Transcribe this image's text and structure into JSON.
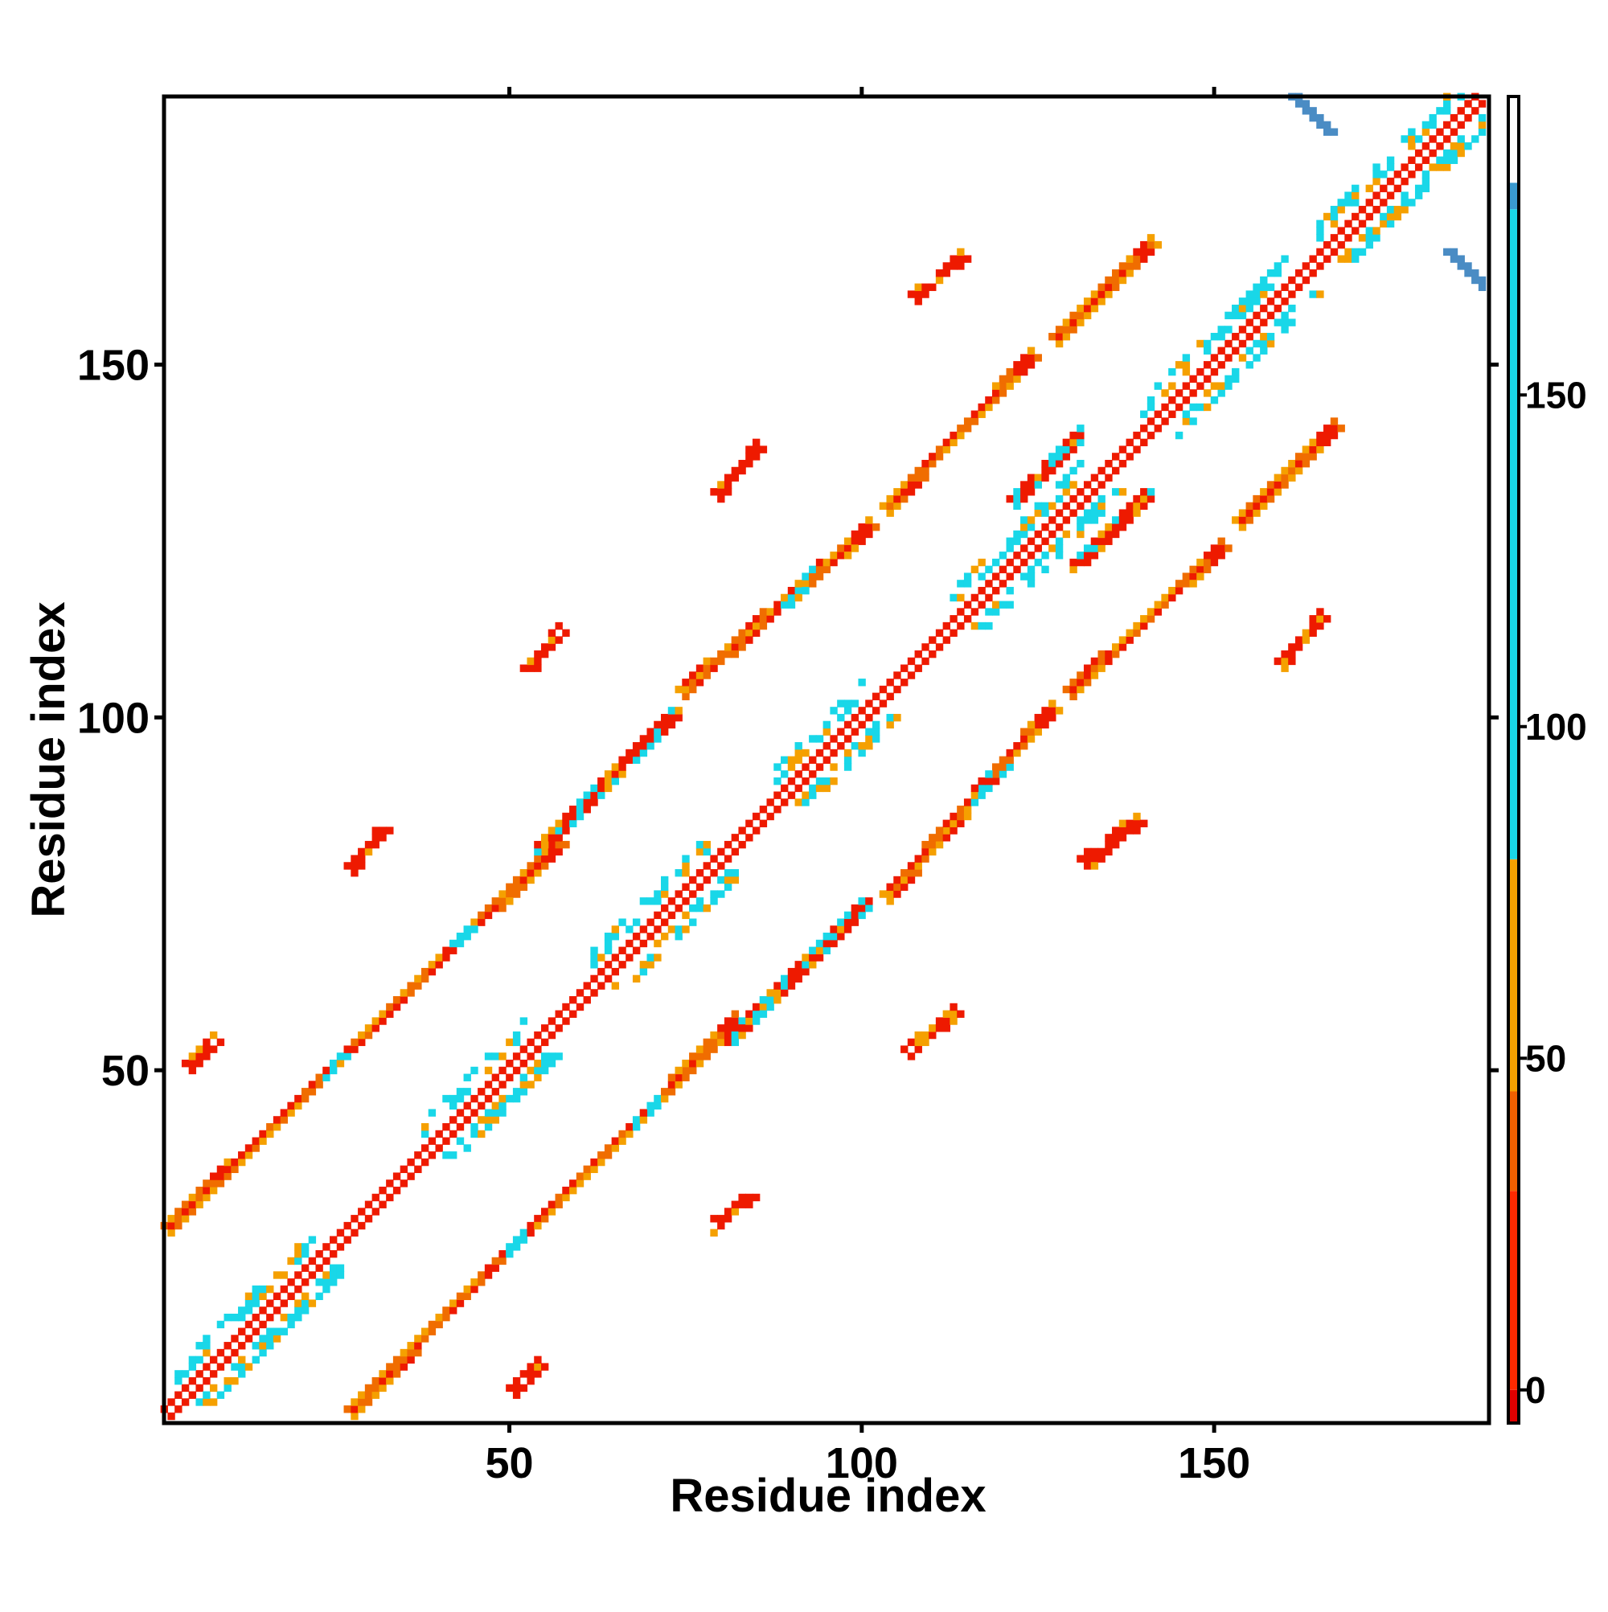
{
  "chart_data": {
    "type": "heatmap",
    "xlabel": "Residue index",
    "ylabel": "Residue index",
    "xlim": [
      1,
      188
    ],
    "ylim": [
      1,
      188
    ],
    "x_ticks": [
      50,
      100,
      150
    ],
    "y_ticks": [
      50,
      100,
      150
    ],
    "grid": false,
    "legend": "colorbar-right",
    "colorbar": {
      "range": [
        -5,
        195
      ],
      "ticks": [
        0,
        50,
        100,
        150
      ],
      "segments": [
        {
          "from": -5,
          "to": 0,
          "color": "#e00000"
        },
        {
          "from": 0,
          "to": 30,
          "color": "#ff2a00"
        },
        {
          "from": 30,
          "to": 45,
          "color": "#f06000"
        },
        {
          "from": 45,
          "to": 80,
          "color": "#f5a000"
        },
        {
          "from": 80,
          "to": 178,
          "color": "#19d7e8"
        },
        {
          "from": 178,
          "to": 182,
          "color": "#3a9ad0"
        },
        {
          "from": 182,
          "to": 195,
          "color": "#ffffff"
        }
      ]
    },
    "color_key": {
      "strong": "#ee1a00",
      "mid": "#f06d00",
      "weak": "#f5a000",
      "cyan": "#19d7e8",
      "blue": "#4a8cc4"
    },
    "bands": [
      {
        "x": [
          1,
          188
        ],
        "y": [
          1,
          188
        ],
        "width": 2.2,
        "pattern": "diag"
      },
      {
        "x": [
          3,
          56
        ],
        "y": [
          29,
          81
        ],
        "width": 2.5,
        "pattern": "strand",
        "gaps": [
          [
            22,
            26
          ],
          [
            40,
            44
          ]
        ]
      },
      {
        "x": [
          29,
          81
        ],
        "y": [
          3,
          56
        ],
        "width": 2.5,
        "pattern": "strand",
        "gaps": [
          [
            22,
            26
          ],
          [
            40,
            44
          ]
        ]
      },
      {
        "x": [
          76,
          100
        ],
        "y": [
          105,
          126
        ],
        "width": 2.8,
        "pattern": "strand",
        "gaps": [
          [
            14,
            17
          ]
        ]
      },
      {
        "x": [
          105,
          126
        ],
        "y": [
          76,
          100
        ],
        "width": 2.8,
        "pattern": "strand",
        "gaps": [
          [
            14,
            17
          ]
        ]
      },
      {
        "x": [
          105,
          123
        ],
        "y": [
          131,
          150
        ],
        "width": 2.6,
        "pattern": "strand",
        "gaps": []
      },
      {
        "x": [
          131,
          150
        ],
        "y": [
          105,
          123
        ],
        "width": 2.6,
        "pattern": "strand",
        "gaps": []
      },
      {
        "x": [
          129,
          140
        ],
        "y": [
          155,
          166
        ],
        "width": 2.3,
        "pattern": "strand",
        "gaps": []
      },
      {
        "x": [
          155,
          166
        ],
        "y": [
          129,
          140
        ],
        "width": 2.3,
        "pattern": "strand",
        "gaps": []
      },
      {
        "x": [
          55,
          73
        ],
        "y": [
          82,
          100
        ],
        "width": 1.6,
        "pattern": "loop",
        "gaps": []
      },
      {
        "x": [
          82,
          100
        ],
        "y": [
          55,
          73
        ],
        "width": 1.6,
        "pattern": "loop",
        "gaps": []
      },
      {
        "x": [
          131,
          140
        ],
        "y": [
          122,
          131
        ],
        "width": 1.8,
        "pattern": "loop",
        "gaps": []
      },
      {
        "x": [
          122,
          131
        ],
        "y": [
          131,
          140
        ],
        "width": 1.8,
        "pattern": "loop",
        "gaps": []
      },
      {
        "x": [
          5,
          8
        ],
        "y": [
          51,
          54
        ],
        "width": 1,
        "pattern": "sparse",
        "gaps": []
      },
      {
        "x": [
          51,
          54
        ],
        "y": [
          5,
          8
        ],
        "width": 1,
        "pattern": "sparse",
        "gaps": []
      },
      {
        "x": [
          28,
          32
        ],
        "y": [
          79,
          84
        ],
        "width": 1,
        "pattern": "sparse",
        "gaps": []
      },
      {
        "x": [
          79,
          84
        ],
        "y": [
          28,
          32
        ],
        "width": 1,
        "pattern": "sparse",
        "gaps": []
      },
      {
        "x": [
          53,
          57
        ],
        "y": [
          107,
          112
        ],
        "width": 1,
        "pattern": "sparse",
        "gaps": []
      },
      {
        "x": [
          107,
          112
        ],
        "y": [
          53,
          57
        ],
        "width": 1,
        "pattern": "sparse",
        "gaps": []
      },
      {
        "x": [
          80,
          85
        ],
        "y": [
          132,
          138
        ],
        "width": 1,
        "pattern": "sparse",
        "gaps": []
      },
      {
        "x": [
          132,
          138
        ],
        "y": [
          80,
          85
        ],
        "width": 1,
        "pattern": "sparse",
        "gaps": []
      },
      {
        "x": [
          108,
          114
        ],
        "y": [
          160,
          165
        ],
        "width": 1,
        "pattern": "sparse",
        "gaps": []
      },
      {
        "x": [
          160,
          165
        ],
        "y": [
          108,
          114
        ],
        "width": 1,
        "pattern": "sparse",
        "gaps": []
      },
      {
        "x": [
          108,
          113
        ],
        "y": [
          54,
          58
        ],
        "width": 1,
        "pattern": "sparse",
        "gaps": []
      },
      {
        "x": [
          133,
          139
        ],
        "y": [
          80,
          85
        ],
        "width": 1,
        "pattern": "sparse",
        "gaps": []
      }
    ],
    "corner_contacts": [
      {
        "x": [
          161,
          166
        ],
        "y": [
          183,
          188
        ],
        "color": "#4a8cc4"
      },
      {
        "x": [
          183,
          188
        ],
        "y": [
          161,
          166
        ],
        "color": "#4a8cc4"
      }
    ]
  }
}
